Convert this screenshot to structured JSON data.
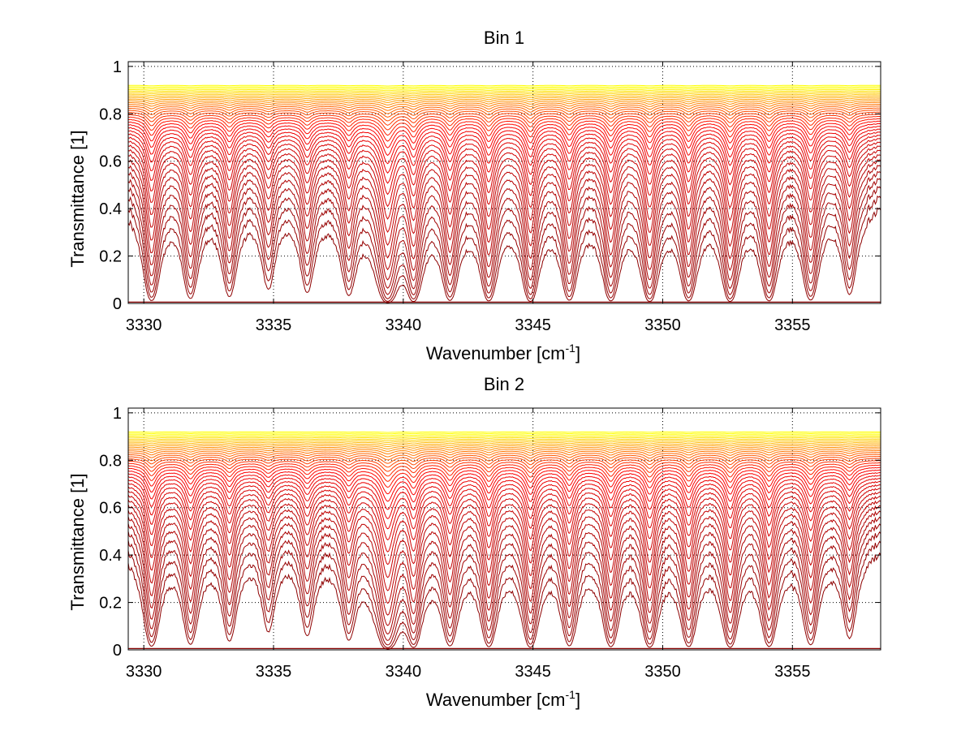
{
  "chart_data": [
    {
      "type": "line",
      "title": "Bin 1",
      "xlabel": "Wavenumber [cm",
      "xlabel_sup": "-1",
      "xlabel_end": "]",
      "ylabel": "Transmittance [1]",
      "xlim": [
        3329.4,
        3358.4
      ],
      "ylim": [
        0,
        1.02
      ],
      "xticks": [
        3330,
        3335,
        3340,
        3345,
        3350,
        3355
      ],
      "xtick_labels": [
        "3330",
        "3335",
        "3340",
        "3345",
        "3350",
        "3355"
      ],
      "yticks": [
        0,
        0.2,
        0.4,
        0.6,
        0.8,
        1
      ],
      "ytick_labels": [
        "0",
        "0.2",
        "0.4",
        "0.6",
        "0.8",
        "1"
      ],
      "grid": true,
      "grid_style": "dotted",
      "colormap": "dark red to yellow (hot)",
      "colors": {
        "dark": "#800000",
        "mid": "#e00000",
        "bright": "#ff8000",
        "light": "#ffff00"
      },
      "curve_count": 40,
      "absorption_lines": [
        {
          "x": 3330.3,
          "depth": 0.75,
          "width": 0.22
        },
        {
          "x": 3331.8,
          "depth": 0.62,
          "width": 0.22
        },
        {
          "x": 3333.3,
          "depth": 0.55,
          "width": 0.22
        },
        {
          "x": 3334.8,
          "depth": 0.4,
          "width": 0.22
        },
        {
          "x": 3336.3,
          "depth": 0.45,
          "width": 0.22
        },
        {
          "x": 3337.9,
          "depth": 0.5,
          "width": 0.22
        },
        {
          "x": 3339.4,
          "depth": 0.98,
          "width": 0.28
        },
        {
          "x": 3340.4,
          "depth": 0.75,
          "width": 0.22
        },
        {
          "x": 3341.8,
          "depth": 0.7,
          "width": 0.22
        },
        {
          "x": 3343.3,
          "depth": 0.75,
          "width": 0.22
        },
        {
          "x": 3344.9,
          "depth": 0.8,
          "width": 0.22
        },
        {
          "x": 3346.4,
          "depth": 0.7,
          "width": 0.22
        },
        {
          "x": 3348.0,
          "depth": 0.75,
          "width": 0.22
        },
        {
          "x": 3349.5,
          "depth": 0.8,
          "width": 0.22
        },
        {
          "x": 3351.0,
          "depth": 0.75,
          "width": 0.22
        },
        {
          "x": 3352.6,
          "depth": 0.8,
          "width": 0.22
        },
        {
          "x": 3354.1,
          "depth": 0.75,
          "width": 0.22
        },
        {
          "x": 3355.7,
          "depth": 0.7,
          "width": 0.22
        },
        {
          "x": 3357.2,
          "depth": 0.5,
          "width": 0.22
        }
      ]
    },
    {
      "type": "line",
      "title": "Bin 2",
      "xlabel": "Wavenumber [cm",
      "xlabel_sup": "-1",
      "xlabel_end": "]",
      "ylabel": "Transmittance [1]",
      "xlim": [
        3329.4,
        3358.4
      ],
      "ylim": [
        0,
        1.02
      ],
      "xticks": [
        3330,
        3335,
        3340,
        3345,
        3350,
        3355
      ],
      "xtick_labels": [
        "3330",
        "3335",
        "3340",
        "3345",
        "3350",
        "3355"
      ],
      "yticks": [
        0,
        0.2,
        0.4,
        0.6,
        0.8,
        1
      ],
      "ytick_labels": [
        "0",
        "0.2",
        "0.4",
        "0.6",
        "0.8",
        "1"
      ],
      "grid": true,
      "grid_style": "dotted",
      "colormap": "dark red to yellow (hot)",
      "colors": {
        "dark": "#800000",
        "mid": "#e00000",
        "bright": "#ff8000",
        "light": "#ffff00"
      },
      "curve_count": 40,
      "absorption_lines": [
        {
          "x": 3330.3,
          "depth": 0.7,
          "width": 0.22
        },
        {
          "x": 3331.8,
          "depth": 0.6,
          "width": 0.22
        },
        {
          "x": 3333.3,
          "depth": 0.5,
          "width": 0.22
        },
        {
          "x": 3334.8,
          "depth": 0.35,
          "width": 0.22
        },
        {
          "x": 3336.3,
          "depth": 0.4,
          "width": 0.22
        },
        {
          "x": 3337.9,
          "depth": 0.45,
          "width": 0.22
        },
        {
          "x": 3339.4,
          "depth": 0.97,
          "width": 0.3
        },
        {
          "x": 3340.4,
          "depth": 0.7,
          "width": 0.22
        },
        {
          "x": 3341.8,
          "depth": 0.65,
          "width": 0.22
        },
        {
          "x": 3343.3,
          "depth": 0.7,
          "width": 0.22
        },
        {
          "x": 3344.9,
          "depth": 0.75,
          "width": 0.22
        },
        {
          "x": 3346.4,
          "depth": 0.65,
          "width": 0.22
        },
        {
          "x": 3348.0,
          "depth": 0.7,
          "width": 0.22
        },
        {
          "x": 3349.5,
          "depth": 0.75,
          "width": 0.22
        },
        {
          "x": 3351.0,
          "depth": 0.7,
          "width": 0.22
        },
        {
          "x": 3352.6,
          "depth": 0.75,
          "width": 0.22
        },
        {
          "x": 3354.1,
          "depth": 0.7,
          "width": 0.22
        },
        {
          "x": 3355.7,
          "depth": 0.62,
          "width": 0.22
        },
        {
          "x": 3357.2,
          "depth": 0.45,
          "width": 0.22
        }
      ]
    }
  ]
}
